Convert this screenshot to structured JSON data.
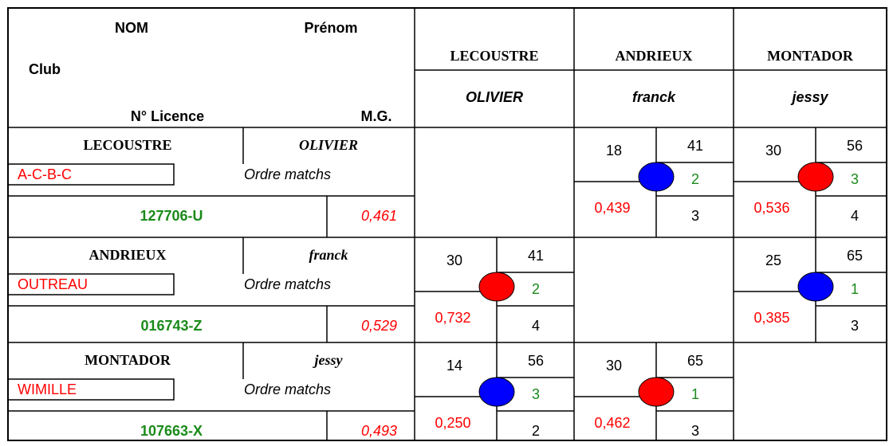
{
  "header": {
    "nom": "NOM",
    "prenom": "Prénom",
    "club": "Club",
    "licence": "N° Licence",
    "mg": "M.G."
  },
  "columns": [
    {
      "nom": "LECOUSTRE",
      "prenom": "OLIVIER"
    },
    {
      "nom": "ANDRIEUX",
      "prenom": "franck"
    },
    {
      "nom": "MONTADOR",
      "prenom": "jessy"
    }
  ],
  "players": [
    {
      "nom": "LECOUSTRE",
      "prenom": "OLIVIER",
      "club": "A-C-B-C",
      "ordre": "Ordre matchs",
      "licence": "127706-U",
      "mg": "0,461",
      "matches": [
        null,
        {
          "left": 18,
          "right": 41,
          "order": 2,
          "mg": "0,439",
          "match": 3,
          "circle": "#0000ff"
        },
        {
          "left": 30,
          "right": 56,
          "order": 3,
          "mg": "0,536",
          "match": 4,
          "circle": "#ff0000"
        }
      ]
    },
    {
      "nom": "ANDRIEUX",
      "prenom": "franck",
      "club": "OUTREAU",
      "ordre": "Ordre matchs",
      "licence": "016743-Z",
      "mg": "0,529",
      "matches": [
        {
          "left": 30,
          "right": 41,
          "order": 2,
          "mg": "0,732",
          "match": 4,
          "circle": "#ff0000"
        },
        null,
        {
          "left": 25,
          "right": 65,
          "order": 1,
          "mg": "0,385",
          "match": 3,
          "circle": "#0000ff"
        }
      ]
    },
    {
      "nom": "MONTADOR",
      "prenom": "jessy",
      "club": "WIMILLE",
      "ordre": "Ordre matchs",
      "licence": "107663-X",
      "mg": "0,493",
      "matches": [
        {
          "left": 14,
          "right": 56,
          "order": 3,
          "mg": "0,250",
          "match": 2,
          "circle": "#0000ff"
        },
        {
          "left": 30,
          "right": 65,
          "order": 1,
          "mg": "0,462",
          "match": 3,
          "circle": "#ff0000"
        },
        null
      ]
    }
  ]
}
